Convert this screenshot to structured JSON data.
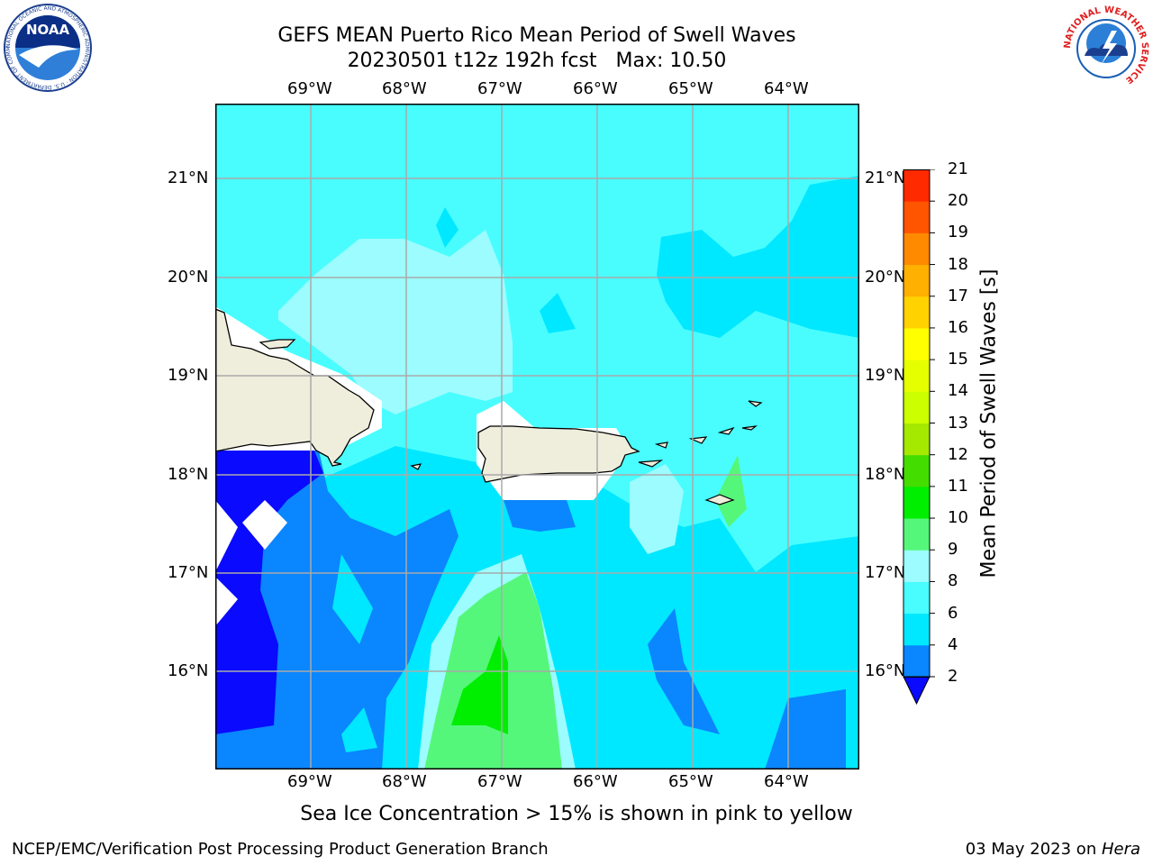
{
  "title": {
    "line1": "GEFS MEAN Puerto Rico Mean Period of Swell Waves",
    "line2": "20230501 t12z 192h fcst",
    "max_text": "Max: 10.50"
  },
  "map": {
    "lon_labels": [
      "69°W",
      "68°W",
      "67°W",
      "66°W",
      "65°W",
      "64°W"
    ],
    "lat_labels": [
      "21°N",
      "20°N",
      "19°N",
      "18°N",
      "17°N",
      "16°N"
    ],
    "colors": {
      "land": "#efeddc",
      "white_mask": "#ffffff",
      "sea_lt": "#9cfcff",
      "sea_mid": "#49fdff",
      "sea_cyan": "#00e8ff",
      "sea_blue": "#0a86ff",
      "sea_navy": "#0a0aff",
      "green_lt": "#55f77a",
      "green": "#00ee00",
      "grid": "#aaaaaa"
    }
  },
  "colorbar": {
    "label": "Mean Period of Swell Waves [s]",
    "ticks": [
      "2",
      "4",
      "6",
      "8",
      "9",
      "10",
      "11",
      "12",
      "13",
      "14",
      "15",
      "16",
      "17",
      "18",
      "19",
      "20",
      "21"
    ],
    "colors": [
      "#0a86ff",
      "#00e8ff",
      "#49fdff",
      "#9cfcff",
      "#55f77a",
      "#00ee00",
      "#44dd00",
      "#a5e800",
      "#ccff00",
      "#e6ff00",
      "#ffff00",
      "#ffd200",
      "#ffb000",
      "#ff8a00",
      "#ff5500",
      "#ff2a00"
    ],
    "under_color": "#0a0aff"
  },
  "caption": "Sea Ice Concentration > 15% is shown in pink to yellow",
  "footer": {
    "left": "NCEP/EMC/Verification Post Processing Product Generation Branch",
    "right_prefix": "03 May 2023 on ",
    "right_machine": "Hera"
  },
  "logos": {
    "noaa_text": "NOAA",
    "noaa_ring_text": "NATIONAL OCEANIC AND ATMOSPHERIC ADMINISTRATION · U.S. DEPARTMENT OF COMMERCE",
    "nws_ring_text": "NATIONAL WEATHER SERVICE"
  }
}
